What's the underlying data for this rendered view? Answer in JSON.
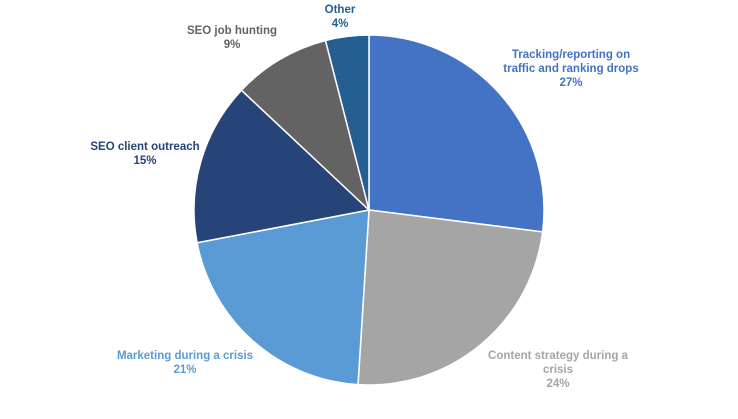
{
  "chart_data": {
    "type": "pie",
    "title": "",
    "start_angle_deg": 0,
    "direction": "clockwise",
    "slices": [
      {
        "label": "Tracking/reporting on traffic and ranking drops",
        "value": 27,
        "pct_label": "27%",
        "color": "#4472c4"
      },
      {
        "label": "Content strategy during a crisis",
        "value": 24,
        "pct_label": "24%",
        "color": "#a5a5a5"
      },
      {
        "label": "Marketing during a crisis",
        "value": 21,
        "pct_label": "21%",
        "color": "#5b9bd5"
      },
      {
        "label": "SEO client outreach",
        "value": 15,
        "pct_label": "15%",
        "color": "#264478"
      },
      {
        "label": "SEO job hunting",
        "value": 9,
        "pct_label": "9%",
        "color": "#636363"
      },
      {
        "label": "Other",
        "value": 4,
        "pct_label": "4%",
        "color": "#255e91"
      }
    ],
    "label_colors": [
      "#4472c4",
      "#a5a5a5",
      "#5b9bd5",
      "#264478",
      "#636363",
      "#255e91"
    ]
  }
}
